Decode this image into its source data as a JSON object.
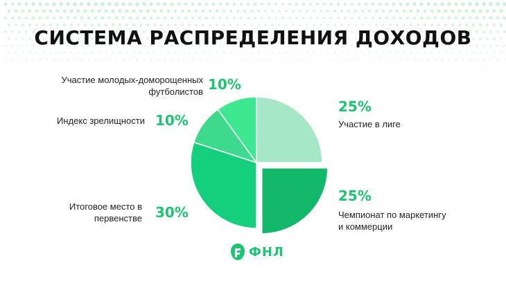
{
  "title": "СИСТЕМА РАСПРЕДЕЛЕНИЯ ДОХОДОВ",
  "colors": {
    "accent": "#1dc472",
    "slice_1": "#a6e8c6",
    "slice_2": "#12b86a",
    "slice_3": "#14d07c",
    "slice_4": "#3dda8e",
    "slice_5": "#3ee891"
  },
  "chart_data": {
    "type": "pie",
    "title": "СИСТЕМА РАСПРЕДЕЛЕНИЯ ДОХОДОВ",
    "legend_placement": "around",
    "slices": [
      {
        "label": "Участие в лиге",
        "value": 25,
        "value_label": "25%",
        "color": "#a6e8c6",
        "exploded": false
      },
      {
        "label": "Чемпионат по маркетингу и коммерции",
        "value": 25,
        "value_label": "25%",
        "color": "#12b86a",
        "exploded": true
      },
      {
        "label": "Итоговое место в первенстве",
        "value": 30,
        "value_label": "30%",
        "color": "#14d07c",
        "exploded": false
      },
      {
        "label": "Индекс зрелищности",
        "value": 10,
        "value_label": "10%",
        "color": "#3dda8e",
        "exploded": false
      },
      {
        "label": "Участие молодых-доморощенных футболистов",
        "value": 10,
        "value_label": "10%",
        "color": "#3ee891",
        "exploded": false
      }
    ]
  },
  "labels": {
    "league": {
      "line1": "Участие в лиге"
    },
    "marketing": {
      "line1": "Чемпионат по маркетингу",
      "line2": "и коммерции"
    },
    "final_place": {
      "line1": "Итоговое место в",
      "line2": "первенстве"
    },
    "spectacle": {
      "line1": "Индекс зрелищности"
    },
    "youth": {
      "line1": "Участие молодых-доморощенных",
      "line2": "футболистов"
    }
  },
  "logo": {
    "text": "ФНЛ",
    "icon": "fnl-logo-icon"
  }
}
